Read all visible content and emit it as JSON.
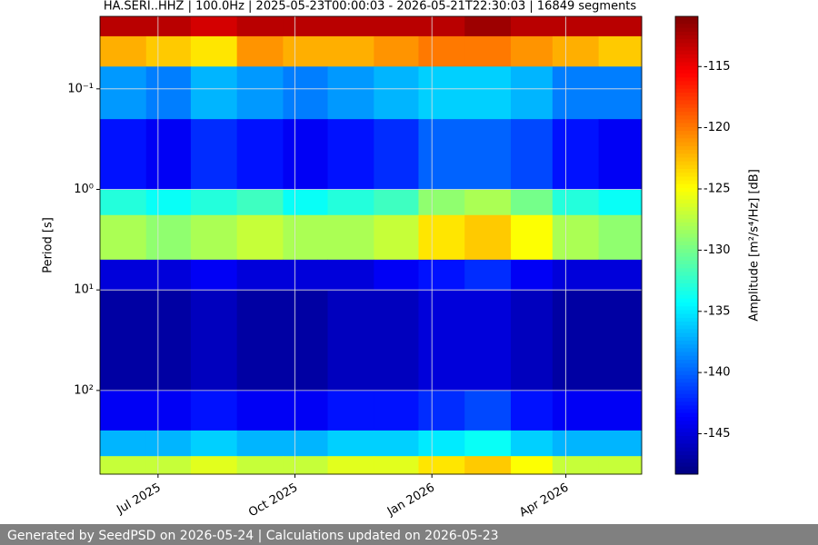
{
  "chart_data": {
    "type": "heatmap",
    "title": "HA.SERI..HHZ | 100.0Hz | 2025-05-23T00:00:03 - 2026-05-21T22:30:03 | 16849 segments",
    "ylabel": "Period [s]",
    "colorbar_label": "Amplitude [m²/s⁴/Hz] [dB]",
    "colormap": "jet",
    "log_y": true,
    "y_inverted": true,
    "grid": true,
    "xlim": [
      "2025-05-23T00:00:03",
      "2026-05-21T22:30:03"
    ],
    "xticks": [
      {
        "value": "2025-07-01",
        "label": "Jul 2025"
      },
      {
        "value": "2025-10-01",
        "label": "Oct 2025"
      },
      {
        "value": "2026-01-01",
        "label": "Jan 2026"
      },
      {
        "value": "2026-04-01",
        "label": "Apr 2026"
      }
    ],
    "ylim": [
      0.019,
      680
    ],
    "yticks": [
      {
        "value": 0.1,
        "label": "10⁻¹"
      },
      {
        "value": 1,
        "label": "10⁰"
      },
      {
        "value": 10,
        "label": "10¹"
      },
      {
        "value": 100,
        "label": "10²"
      }
    ],
    "clim": [
      -148.3,
      -110.9
    ],
    "cticks": [
      -115,
      -120,
      -125,
      -130,
      -135,
      -140,
      -145
    ],
    "x_edges": [
      "2025-05-23T00:00:03",
      "2025-06-23",
      "2025-07-23",
      "2025-08-23",
      "2025-09-23",
      "2025-10-23",
      "2025-11-23",
      "2025-12-23",
      "2026-01-23",
      "2026-02-23",
      "2026-03-23",
      "2026-04-23",
      "2026-05-21T22:30:03"
    ],
    "y_edges": [
      0.019,
      0.03,
      0.06,
      0.2,
      1,
      1.8,
      5,
      10,
      100,
      250,
      450,
      680
    ],
    "values": [
      [
        -113,
        -113,
        -114,
        -113,
        -113,
        -113,
        -113,
        -113,
        -112,
        -113,
        -113,
        -113
      ],
      [
        -122,
        -123,
        -124,
        -121,
        -122,
        -122,
        -121,
        -120,
        -120,
        -121,
        -122,
        -123
      ],
      [
        -138,
        -139,
        -137,
        -138,
        -139,
        -138,
        -137,
        -136,
        -136,
        -137,
        -139,
        -139
      ],
      [
        -143,
        -144,
        -142,
        -143,
        -144,
        -143,
        -142,
        -140,
        -140,
        -141,
        -143,
        -144
      ],
      [
        -133,
        -134,
        -133,
        -132,
        -134,
        -133,
        -132,
        -129,
        -128,
        -130,
        -133,
        -134
      ],
      [
        -128,
        -129,
        -128,
        -127,
        -128,
        -128,
        -127,
        -124,
        -123,
        -125,
        -128,
        -129
      ],
      [
        -145,
        -145,
        -144,
        -145,
        -145,
        -145,
        -144,
        -143,
        -142,
        -144,
        -145,
        -145
      ],
      [
        -147,
        -147,
        -146,
        -147,
        -147,
        -146,
        -146,
        -145,
        -145,
        -146,
        -147,
        -147
      ],
      [
        -144,
        -144,
        -143,
        -144,
        -144,
        -143,
        -143,
        -142,
        -141,
        -143,
        -144,
        -144
      ],
      [
        -137,
        -137,
        -136,
        -137,
        -137,
        -136,
        -136,
        -135,
        -134,
        -136,
        -137,
        -137
      ],
      [
        -127,
        -127,
        -126,
        -127,
        -127,
        -126,
        -126,
        -124,
        -123,
        -125,
        -127,
        -127
      ]
    ]
  },
  "footer": "Generated by SeedPSD on 2026-05-24 | Calculations updated on 2026-05-23"
}
